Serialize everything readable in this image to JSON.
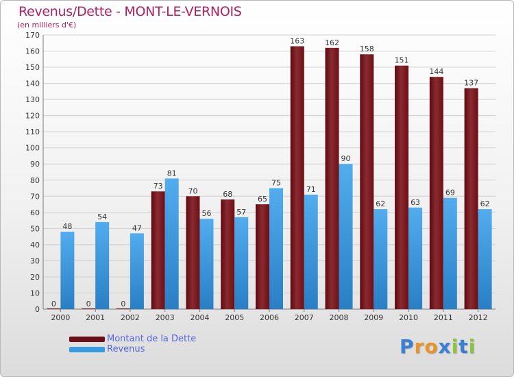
{
  "title": "Revenus/Dette - MONT-LE-VERNOIS",
  "subtitle": "(en milliers d'€)",
  "logo": {
    "text": "Proxiti",
    "letters": [
      "P",
      "r",
      "o",
      "x",
      "i",
      "t",
      "i"
    ],
    "colors": [
      "#3b7fd4",
      "#e8942a",
      "#e8942a",
      "#3b7fd4",
      "#8cc43c",
      "#3b7fd4",
      "#8cc43c"
    ]
  },
  "colors": {
    "dette": "#6b0f16",
    "revenus": "#3a9ae0",
    "title": "#b02060",
    "axis_text": "#333333"
  },
  "legend": [
    {
      "label": "Montant de la Dette",
      "color": "#6b0f16"
    },
    {
      "label": "Revenus",
      "color": "#3a9ae0"
    }
  ],
  "chart_data": {
    "type": "bar",
    "title": "Revenus/Dette - MONT-LE-VERNOIS",
    "ylabel": "(en milliers d'€)",
    "categories": [
      "2000",
      "2001",
      "2002",
      "2003",
      "2004",
      "2005",
      "2006",
      "2007",
      "2008",
      "2009",
      "2010",
      "2011",
      "2012"
    ],
    "series": [
      {
        "name": "Montant de la Dette",
        "values": [
          0,
          0,
          0,
          73,
          70,
          68,
          65,
          163,
          162,
          158,
          151,
          144,
          137
        ]
      },
      {
        "name": "Revenus",
        "values": [
          48,
          54,
          47,
          81,
          56,
          57,
          75,
          71,
          90,
          62,
          63,
          69,
          62
        ]
      }
    ],
    "ylim": [
      0,
      170
    ],
    "yticks": [
      0,
      10,
      20,
      30,
      40,
      50,
      60,
      70,
      80,
      90,
      100,
      110,
      120,
      130,
      140,
      150,
      160,
      170
    ],
    "grid": true,
    "legend_position": "bottom-left"
  }
}
